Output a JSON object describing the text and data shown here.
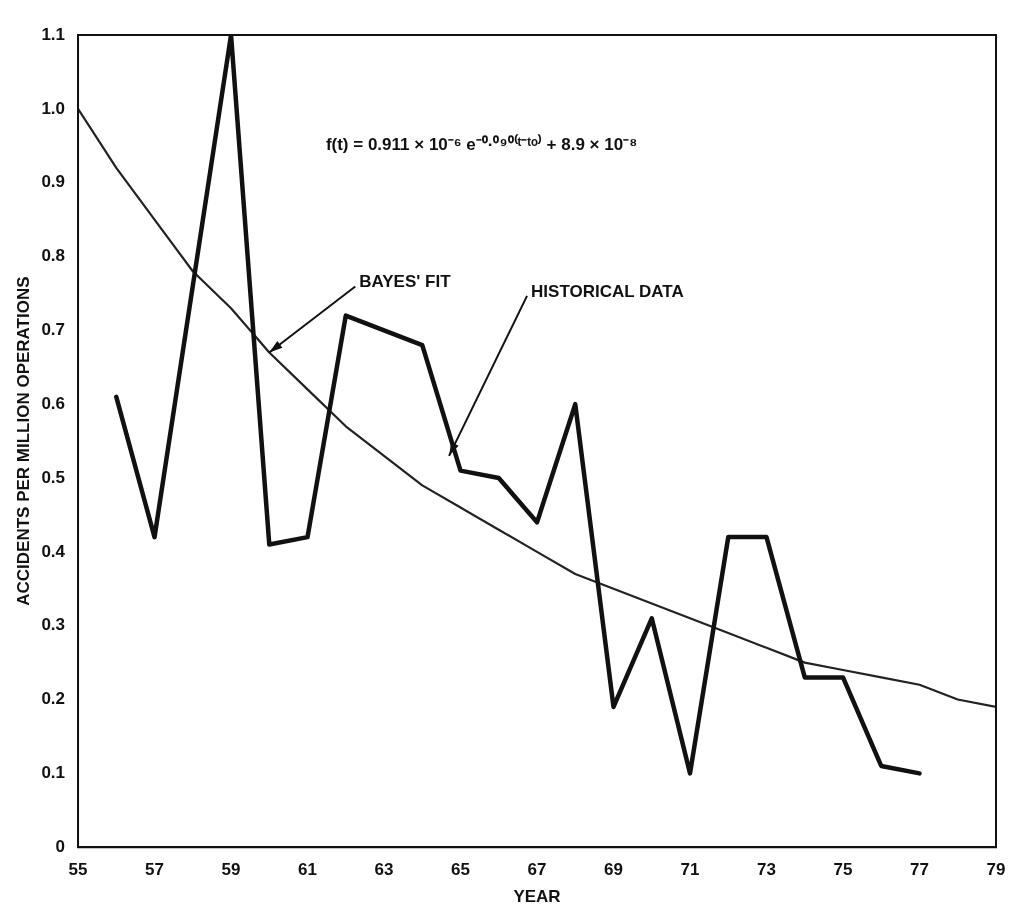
{
  "chart_data": {
    "type": "line",
    "xlabel": "YEAR",
    "ylabel": "ACCIDENTS PER MILLION OPERATIONS",
    "xlim": [
      55,
      79
    ],
    "xticks": [
      55,
      57,
      59,
      61,
      63,
      65,
      67,
      69,
      71,
      73,
      75,
      77,
      79
    ],
    "ylim": [
      0,
      1.1
    ],
    "yticks": [
      0,
      0.1,
      0.2,
      0.3,
      0.4,
      0.5,
      0.6,
      0.7,
      0.8,
      0.9,
      {
        "value": 1.0,
        "label": "1.0"
      },
      1.1
    ],
    "grid": false,
    "legend": false,
    "marker": "none",
    "line_style": "solid",
    "series": [
      {
        "color": "#111111",
        "x": [
          56,
          57,
          59,
          60,
          61,
          62,
          64,
          65,
          66,
          67,
          68,
          69,
          70,
          71,
          72,
          73,
          74,
          75,
          76,
          77
        ],
        "values": [
          0.61,
          0.42,
          1.1,
          0.41,
          0.42,
          0.72,
          0.68,
          0.51,
          0.5,
          0.44,
          0.6,
          0.19,
          0.31,
          0.1,
          0.42,
          0.42,
          0.23,
          0.23,
          0.11,
          0.1
        ]
      },
      {
        "type": "line",
        "color": "#222222",
        "x": [
          55,
          56,
          57,
          58,
          59,
          60,
          61,
          62,
          63,
          64,
          65,
          66,
          67,
          68,
          69,
          70,
          71,
          72,
          73,
          74,
          75,
          76,
          77,
          78,
          79
        ],
        "values": [
          1.0,
          0.92,
          0.85,
          0.78,
          0.73,
          0.67,
          0.62,
          0.57,
          0.53,
          0.49,
          0.46,
          0.43,
          0.4,
          0.37,
          0.35,
          0.33,
          0.31,
          0.29,
          0.27,
          0.25,
          0.24,
          0.23,
          0.22,
          0.2,
          0.19
        ]
      }
    ],
    "annotations": [
      "f(t) = 0.911 × 10⁻⁶ e⁻⁰·⁰⁹⁰⁽ᵗ⁻ᵗᵒ⁾ + 8.9 × 10⁻⁸",
      {
        "text": "BAYES' FIT",
        "x": 60,
        "y": 0.67
      },
      {
        "text": "HISTORICAL DATA",
        "x": 64.7,
        "y": 0.53
      }
    ]
  }
}
